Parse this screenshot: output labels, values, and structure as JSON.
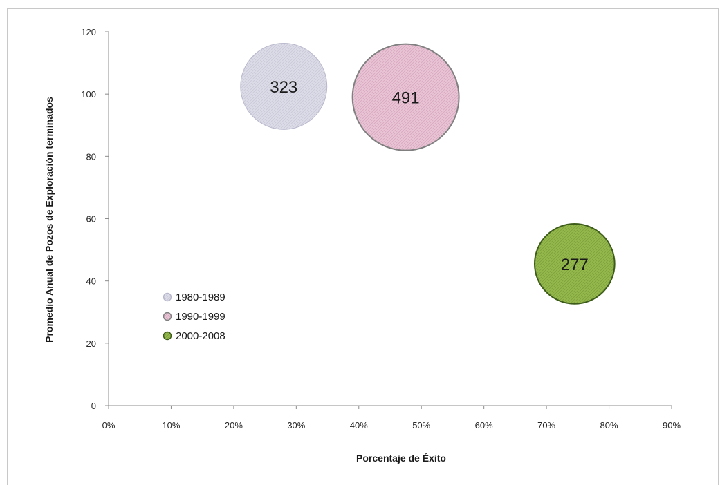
{
  "chart_data": {
    "type": "bubble",
    "title": "",
    "xlabel": "Porcentaje de Éxito",
    "ylabel": "Promedio Anual de Pozos de Exploración terminados",
    "xlim": [
      0,
      0.9
    ],
    "ylim": [
      0,
      120
    ],
    "x_tick_labels": [
      "0%",
      "10%",
      "20%",
      "30%",
      "40%",
      "50%",
      "60%",
      "70%",
      "80%",
      "90%"
    ],
    "y_tick_labels": [
      "0",
      "20",
      "40",
      "60",
      "80",
      "100",
      "120"
    ],
    "grid": false,
    "legend_placement": "lower-left",
    "series": [
      {
        "name": "1980-1989",
        "x": 0.28,
        "y": 102.5,
        "size": 323,
        "label": "323",
        "fill": "#d9d9e6",
        "stroke": "#b8b8cc"
      },
      {
        "name": "1990-1999",
        "x": 0.475,
        "y": 99,
        "size": 491,
        "label": "491",
        "fill": "#e6bfd0",
        "stroke": "#808080"
      },
      {
        "name": "2000-2008",
        "x": 0.745,
        "y": 45.5,
        "size": 277,
        "label": "277",
        "fill": "#8fb34a",
        "stroke": "#3d5c1a"
      }
    ]
  }
}
